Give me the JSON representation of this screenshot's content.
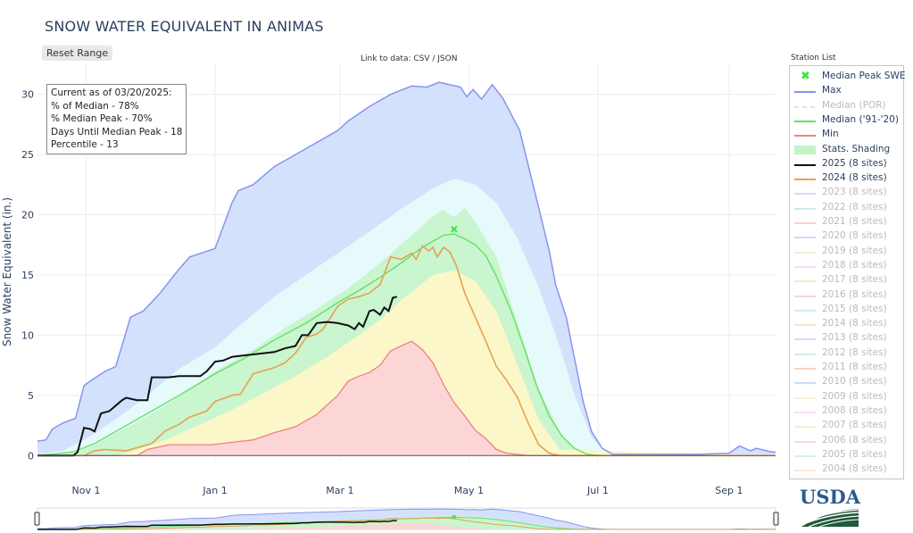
{
  "title": "SNOW WATER EQUIVALENT IN ANIMAS",
  "reset_label": "Reset Range",
  "data_link_text": "Link to data: CSV / JSON",
  "station_list_title": "Station List",
  "info_box": [
    "Current as of 03/20/2025:",
    "% of Median - 78%",
    "% Median Peak - 70%",
    "Days Until Median Peak - 18",
    "Percentile - 13"
  ],
  "logo_text": "USDA",
  "legend": [
    {
      "label": "Median Peak SWE",
      "color": "#39e639",
      "kind": "marker",
      "active": true
    },
    {
      "label": "Max",
      "color": "#8a93f0",
      "kind": "line",
      "active": true
    },
    {
      "label": "Median (POR)",
      "color": "#a8e8a8",
      "kind": "dash",
      "active": false
    },
    {
      "label": "Median ('91-'20)",
      "color": "#66e066",
      "kind": "line",
      "active": true
    },
    {
      "label": "Min",
      "color": "#f08080",
      "kind": "line",
      "active": true
    },
    {
      "label": "Stats. Shading",
      "color": "#c6f2c6",
      "kind": "band",
      "active": true
    },
    {
      "label": "2025 (8 sites)",
      "color": "#111111",
      "kind": "thick",
      "active": true
    },
    {
      "label": "2024 (8 sites)",
      "color": "#e8a050",
      "kind": "line",
      "active": true
    },
    {
      "label": "2023 (8 sites)",
      "color": "#c8a8f0",
      "kind": "line",
      "active": false
    },
    {
      "label": "2022 (8 sites)",
      "color": "#8ce0c8",
      "kind": "line",
      "active": false
    },
    {
      "label": "2021 (8 sites)",
      "color": "#f0a890",
      "kind": "line",
      "active": false
    },
    {
      "label": "2020 (8 sites)",
      "color": "#a8b0f0",
      "kind": "line",
      "active": false
    },
    {
      "label": "2019 (8 sites)",
      "color": "#f0e0a0",
      "kind": "line",
      "active": false
    },
    {
      "label": "2018 (8 sites)",
      "color": "#f0b8f0",
      "kind": "line",
      "active": false
    },
    {
      "label": "2017 (8 sites)",
      "color": "#c8e8a0",
      "kind": "line",
      "active": false
    },
    {
      "label": "2016 (8 sites)",
      "color": "#f0a8b8",
      "kind": "line",
      "active": false
    },
    {
      "label": "2015 (8 sites)",
      "color": "#98e0e8",
      "kind": "line",
      "active": false
    },
    {
      "label": "2014 (8 sites)",
      "color": "#f0c8a0",
      "kind": "line",
      "active": false
    },
    {
      "label": "2013 (8 sites)",
      "color": "#c0b0f0",
      "kind": "line",
      "active": false
    },
    {
      "label": "2012 (8 sites)",
      "color": "#a0e0c0",
      "kind": "line",
      "active": false
    },
    {
      "label": "2011 (8 sites)",
      "color": "#f0a898",
      "kind": "line",
      "active": false
    },
    {
      "label": "2010 (8 sites)",
      "color": "#a8b0f8",
      "kind": "line",
      "active": false
    },
    {
      "label": "2009 (8 sites)",
      "color": "#f8e4a8",
      "kind": "line",
      "active": false
    },
    {
      "label": "2008 (8 sites)",
      "color": "#f8c0f0",
      "kind": "line",
      "active": false
    },
    {
      "label": "2007 (8 sites)",
      "color": "#d0f0a8",
      "kind": "line",
      "active": false
    },
    {
      "label": "2006 (8 sites)",
      "color": "#f8b0b8",
      "kind": "line",
      "active": false
    },
    {
      "label": "2005 (8 sites)",
      "color": "#a0e8f0",
      "kind": "line",
      "active": false
    },
    {
      "label": "2004 (8 sites)",
      "color": "#f8d0b0",
      "kind": "line",
      "active": false
    }
  ],
  "chart_data": {
    "type": "area",
    "title": "SNOW WATER EQUIVALENT IN ANIMAS",
    "ylabel": "Snow Water Equivalent (in.)",
    "xlabel": "",
    "x_unit": "day of water year (Oct 1 = 0)",
    "xlim": [
      8,
      357
    ],
    "ylim": [
      -0.5,
      32.5
    ],
    "yticks": [
      0,
      5,
      10,
      15,
      20,
      25,
      30
    ],
    "xticks": [
      {
        "day": 31,
        "label": "Nov 1"
      },
      {
        "day": 92,
        "label": "Jan 1"
      },
      {
        "day": 151,
        "label": "Mar 1"
      },
      {
        "day": 212,
        "label": "May 1"
      },
      {
        "day": 273,
        "label": "Jul 1"
      },
      {
        "day": 335,
        "label": "Sep 1"
      }
    ],
    "colors": {
      "max_fill": "#d4e1fc",
      "max_line": "#8a93f0",
      "p90_fill": "#e6fafc",
      "p70_fill": "#c9f5cf",
      "p50_fill": "#fbf7c9",
      "min_fill": "#fcd6d6",
      "min_line": "#f08080",
      "median_line": "#66e066",
      "y2025": "#111111",
      "y2024": "#e8a050",
      "peak_marker": "#39e639",
      "grid": "#ececec"
    },
    "series": [
      {
        "name": "Max",
        "x": [
          8,
          12,
          15,
          20,
          26,
          30,
          33,
          40,
          45,
          52,
          58,
          66,
          75,
          80,
          92,
          100,
          103,
          110,
          120,
          130,
          140,
          150,
          155,
          165,
          175,
          185,
          192,
          198,
          203,
          208,
          211,
          214,
          218,
          223,
          228,
          236,
          243,
          250,
          253,
          258,
          262,
          266,
          270,
          275,
          280,
          300,
          320,
          335,
          340,
          345,
          348,
          355,
          357
        ],
        "y": [
          1.2,
          1.3,
          2.2,
          2.7,
          3.1,
          5.8,
          6.2,
          7.0,
          7.4,
          11.5,
          12.0,
          13.5,
          15.5,
          16.5,
          17.2,
          21.0,
          22.0,
          22.5,
          24.0,
          25.0,
          26.0,
          27.0,
          27.8,
          29.0,
          30.0,
          30.7,
          30.6,
          31.0,
          30.8,
          30.6,
          29.8,
          30.4,
          29.6,
          30.8,
          29.7,
          27.0,
          22.0,
          17.0,
          14.2,
          11.5,
          8.0,
          4.5,
          2.0,
          0.6,
          0.1,
          0.1,
          0.1,
          0.2,
          0.8,
          0.4,
          0.6,
          0.3,
          0.3
        ]
      },
      {
        "name": "P90",
        "x": [
          8,
          20,
          30,
          45,
          60,
          75,
          92,
          105,
          120,
          135,
          150,
          165,
          180,
          195,
          205,
          215,
          225,
          235,
          245,
          255,
          262,
          270,
          278,
          357
        ],
        "y": [
          0.1,
          0.4,
          1.3,
          3.0,
          5.0,
          7.2,
          9.0,
          11.0,
          13.2,
          15.0,
          16.8,
          18.6,
          20.5,
          22.2,
          23.0,
          22.5,
          21.0,
          18.0,
          14.0,
          9.0,
          5.0,
          1.5,
          0.1,
          0.1
        ]
      },
      {
        "name": "P70",
        "x": [
          8,
          25,
          35,
          50,
          65,
          80,
          92,
          110,
          125,
          140,
          155,
          170,
          185,
          195,
          200,
          205,
          210,
          215,
          225,
          235,
          245,
          255,
          262,
          270,
          357
        ],
        "y": [
          0,
          0.2,
          0.9,
          2.3,
          3.8,
          5.5,
          7.0,
          8.8,
          10.6,
          12.2,
          13.9,
          16.0,
          18.3,
          19.9,
          20.4,
          19.8,
          20.6,
          19.4,
          16.5,
          11.0,
          5.5,
          2.0,
          0.5,
          0.1,
          0
        ]
      },
      {
        "name": "Median ('91-'20)",
        "x": [
          8,
          25,
          35,
          45,
          60,
          75,
          92,
          105,
          120,
          135,
          150,
          160,
          170,
          180,
          190,
          196,
          200,
          205,
          210,
          215,
          220,
          225,
          232,
          238,
          244,
          250,
          256,
          262,
          268,
          275,
          357
        ],
        "y": [
          0,
          0.3,
          1.0,
          2.0,
          3.5,
          5.0,
          6.8,
          8.0,
          9.6,
          11.0,
          12.7,
          13.7,
          14.8,
          16.0,
          17.3,
          17.9,
          18.3,
          18.4,
          18.0,
          17.5,
          16.6,
          14.9,
          12.0,
          9.0,
          5.8,
          3.3,
          1.6,
          0.6,
          0.1,
          0,
          0
        ]
      },
      {
        "name": "P30",
        "x": [
          8,
          45,
          55,
          70,
          85,
          100,
          115,
          130,
          145,
          160,
          170,
          180,
          190,
          195,
          205,
          215,
          225,
          235,
          245,
          255,
          357
        ],
        "y": [
          0,
          0,
          0.5,
          1.4,
          2.6,
          3.8,
          5.2,
          6.6,
          8.2,
          10.0,
          11.3,
          12.9,
          14.3,
          15.0,
          15.4,
          14.5,
          12.0,
          7.5,
          3.0,
          0.5,
          0
        ]
      },
      {
        "name": "Min",
        "x": [
          8,
          45,
          55,
          60,
          70,
          90,
          100,
          110,
          120,
          130,
          140,
          145,
          150,
          155,
          160,
          165,
          170,
          175,
          180,
          185,
          190,
          195,
          200,
          205,
          210,
          215,
          220,
          225,
          230,
          240,
          250,
          260,
          357
        ],
        "y": [
          0,
          0,
          0,
          0.5,
          0.9,
          0.9,
          1.1,
          1.3,
          1.9,
          2.4,
          3.4,
          4.2,
          5.0,
          6.2,
          6.6,
          6.9,
          7.5,
          8.7,
          9.1,
          9.5,
          8.8,
          7.7,
          5.9,
          4.4,
          3.3,
          2.1,
          1.4,
          0.5,
          0.2,
          0,
          0,
          0,
          0
        ]
      },
      {
        "name": "2024 (8 sites)",
        "x": [
          8,
          20,
          30,
          35,
          40,
          50,
          58,
          62,
          68,
          75,
          80,
          88,
          92,
          100,
          104,
          110,
          120,
          125,
          130,
          135,
          140,
          143,
          150,
          155,
          160,
          165,
          170,
          175,
          180,
          185,
          187,
          190,
          193,
          195,
          197,
          200,
          203,
          206,
          210,
          215,
          220,
          225,
          230,
          235,
          240,
          245,
          250,
          255,
          260,
          265,
          270,
          357
        ],
        "y": [
          0,
          0,
          0,
          0.4,
          0.5,
          0.4,
          0.8,
          1.0,
          2.0,
          2.6,
          3.2,
          3.7,
          4.5,
          5.0,
          5.1,
          6.8,
          7.3,
          7.7,
          8.5,
          9.8,
          10.1,
          10.5,
          12.4,
          13.0,
          13.2,
          13.5,
          14.2,
          16.5,
          16.3,
          16.8,
          16.3,
          17.4,
          17.0,
          17.3,
          16.5,
          17.3,
          16.9,
          15.8,
          13.5,
          11.5,
          9.5,
          7.4,
          6.2,
          4.8,
          2.7,
          0.9,
          0.2,
          0,
          0,
          0,
          0,
          0
        ]
      },
      {
        "name": "2025 (8 sites)",
        "x": [
          8,
          20,
          25,
          27,
          30,
          33,
          35,
          38,
          42,
          48,
          50,
          55,
          60,
          62,
          65,
          70,
          75,
          80,
          85,
          88,
          92,
          96,
          100,
          105,
          110,
          115,
          120,
          125,
          130,
          133,
          136,
          140,
          145,
          150,
          155,
          158,
          160,
          162,
          165,
          167,
          170,
          172,
          174,
          176,
          178
        ],
        "y": [
          0,
          0,
          0,
          0.3,
          2.3,
          2.2,
          2.0,
          3.5,
          3.7,
          4.6,
          4.8,
          4.6,
          4.6,
          6.5,
          6.5,
          6.5,
          6.6,
          6.6,
          6.6,
          7.0,
          7.8,
          7.9,
          8.2,
          8.3,
          8.4,
          8.5,
          8.6,
          8.9,
          9.1,
          10.0,
          10.0,
          11.0,
          11.1,
          11.0,
          10.8,
          10.5,
          11.0,
          10.7,
          12.0,
          12.1,
          11.7,
          12.3,
          12.0,
          13.1,
          13.2
        ]
      }
    ],
    "median_peak": {
      "x": 205,
      "y": 18.8,
      "label": "Median Peak SWE"
    },
    "range_slider": {
      "x_start": 8,
      "x_end": 357
    }
  }
}
